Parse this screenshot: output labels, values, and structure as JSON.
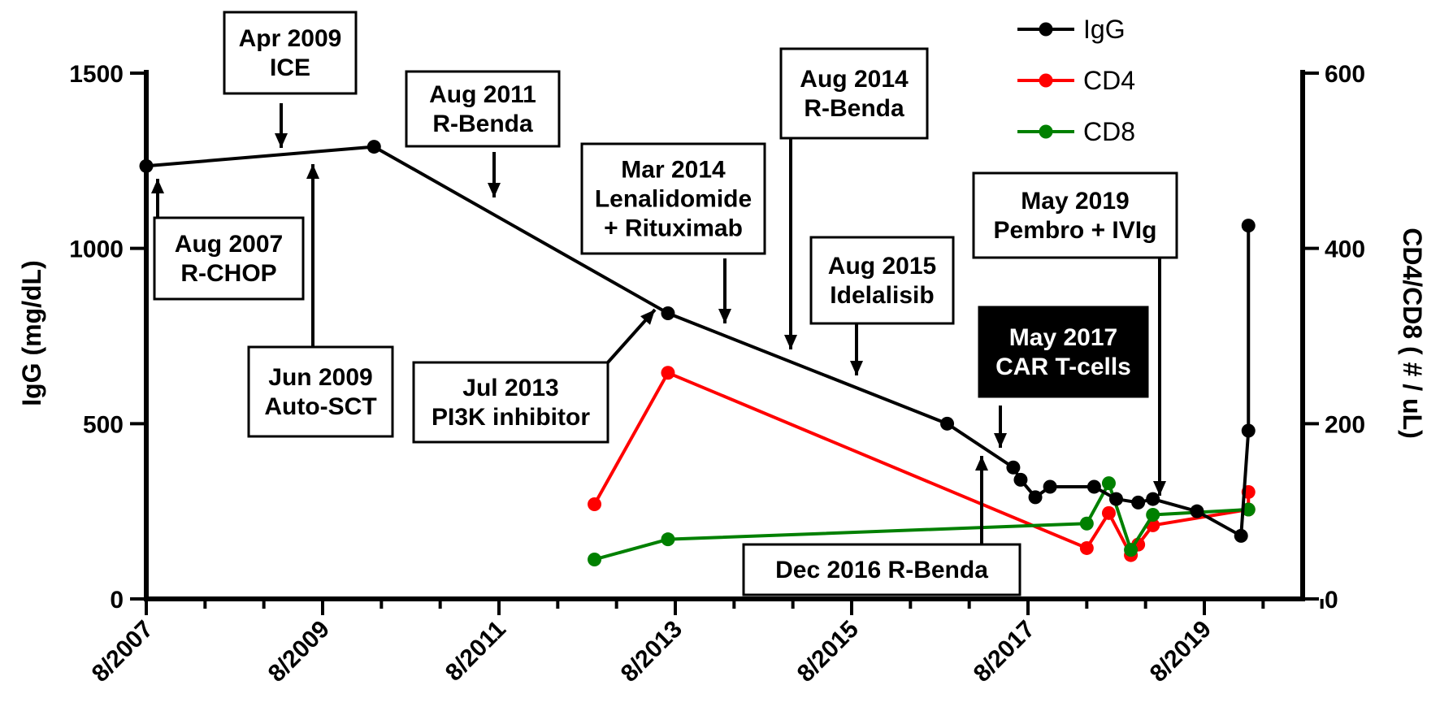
{
  "chart_data": {
    "type": "line",
    "title": "",
    "xlabel": "",
    "ylabel": "IgG (mg/dL)",
    "y2label": "CD4/CD8 ( # / uL)",
    "xlim": [
      "2007-08",
      "2020-03"
    ],
    "ylim": [
      0,
      1500
    ],
    "y2lim": [
      0,
      600
    ],
    "x_ticks": [
      "8/2007",
      "8/2009",
      "8/2011",
      "8/2013",
      "8/2015",
      "8/2017",
      "8/2019"
    ],
    "y_ticks": [
      "0",
      "500",
      "1000",
      "1500"
    ],
    "y2_ticks": [
      "0",
      "200",
      "400",
      "600"
    ],
    "grid": false,
    "legend_position": "top-right",
    "series": [
      {
        "name": "IgG",
        "axis": "left",
        "color": "#000000",
        "x": [
          "2007-08",
          "2010-03",
          "2013-07",
          "2016-09",
          "2017-06",
          "2017-07",
          "2017-09",
          "2017-11",
          "2018-05",
          "2018-08",
          "2018-11",
          "2019-01",
          "2019-07",
          "2020-01",
          "2020-02",
          "2020-02"
        ],
        "y": [
          1235,
          1290,
          815,
          500,
          375,
          340,
          290,
          320,
          320,
          285,
          275,
          285,
          250,
          180,
          480,
          1065
        ]
      },
      {
        "name": "CD4",
        "axis": "right",
        "color": "#ff0000",
        "x": [
          "2012-09",
          "2013-07",
          "2018-04",
          "2018-07",
          "2018-10",
          "2018-11",
          "2019-01",
          "2020-02",
          "2020-02"
        ],
        "y": [
          108,
          258,
          58,
          98,
          50,
          62,
          84,
          102,
          122
        ]
      },
      {
        "name": "CD8",
        "axis": "right",
        "color": "#008000",
        "x": [
          "2012-09",
          "2013-07",
          "2018-04",
          "2018-07",
          "2018-10",
          "2019-01",
          "2020-02"
        ],
        "y": [
          45,
          68,
          86,
          132,
          56,
          96,
          102
        ]
      }
    ],
    "annotations": [
      {
        "lines": [
          "Aug 2007",
          "R-CHOP"
        ],
        "target": "2007-08",
        "dark": false
      },
      {
        "lines": [
          "Apr 2009",
          "ICE"
        ],
        "target": "2009-04",
        "dark": false
      },
      {
        "lines": [
          "Jun 2009",
          "Auto-SCT"
        ],
        "target": "2009-06",
        "dark": false
      },
      {
        "lines": [
          "Aug 2011",
          "R-Benda"
        ],
        "target": "2011-08",
        "dark": false
      },
      {
        "lines": [
          "Jul 2013",
          "PI3K inhibitor"
        ],
        "target": "2013-07",
        "dark": false
      },
      {
        "lines": [
          "Mar 2014",
          "Lenalidomide",
          "+ Rituximab"
        ],
        "target": "2014-03",
        "dark": false
      },
      {
        "lines": [
          "Aug 2014",
          "R-Benda"
        ],
        "target": "2014-08",
        "dark": false
      },
      {
        "lines": [
          "Aug 2015",
          "Idelalisib"
        ],
        "target": "2015-08",
        "dark": false
      },
      {
        "lines": [
          "Dec 2016 R-Benda"
        ],
        "target": "2016-12",
        "dark": false
      },
      {
        "lines": [
          "May 2017",
          "CAR T-cells"
        ],
        "target": "2017-05",
        "dark": true
      },
      {
        "lines": [
          "May 2019",
          "Pembro + IVIg"
        ],
        "target": "2019-05",
        "dark": false
      }
    ]
  }
}
